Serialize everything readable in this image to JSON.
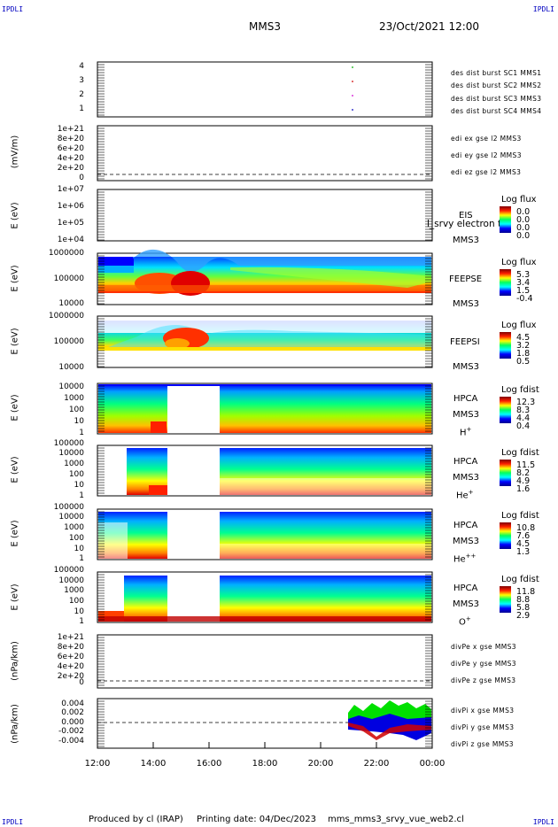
{
  "corners": {
    "tl": "IPDLI",
    "tr": "IPDLI",
    "bl": "IPDLI",
    "br": "IPDLI"
  },
  "header": {
    "spacecraft": "MMS3",
    "datetime": "23/Oct/2021 12:00"
  },
  "footer": {
    "produced": "Produced by cl (IRAP)",
    "printing": "Printing date: 04/Dec/2023",
    "file": "mms_mms3_srvy_vue_web2.cl"
  },
  "x_ticks": [
    "12:00",
    "14:00",
    "16:00",
    "18:00",
    "20:00",
    "22:00",
    "00:00"
  ],
  "panels": {
    "burst": {
      "y_ticks": [
        "4",
        "3",
        "2",
        "1"
      ],
      "legend": [
        {
          "text": "des dist burst SC1 MMS1",
          "color": "#0000c0"
        },
        {
          "text": "des dist burst SC2 MMS2",
          "color": "#d000d0"
        },
        {
          "text": "des dist burst SC3 MMS3",
          "color": "#d00000"
        },
        {
          "text": "des dist burst SC4 MMS4",
          "color": "#00b000"
        }
      ]
    },
    "edi": {
      "ylabel": "(mV/m)",
      "y_ticks": [
        "1e+21",
        "8e+20",
        "6e+20",
        "4e+20",
        "2e+20",
        "0"
      ],
      "legend": [
        {
          "text": "edi ex gse l2 MMS3",
          "color": "#d00000"
        },
        {
          "text": "edi ey gse l2 MMS3",
          "color": "#00b000"
        },
        {
          "text": "edi ez gse l2 MMS3",
          "color": "#0000c0"
        }
      ]
    },
    "eis": {
      "ylabel": "E (eV)",
      "y_ticks": [
        "1e+07",
        "1e+06",
        "1e+05",
        "1e+04"
      ],
      "inst": "EIS",
      "sc": "MMS3",
      "overlay": "l_srvy electron to",
      "cb_title": "Log flux",
      "cb_values": [
        "0.0",
        "0.0",
        "0.0",
        "0.0"
      ]
    },
    "feepse": {
      "ylabel": "E (eV)",
      "y_ticks": [
        "1000000",
        "100000",
        "10000"
      ],
      "inst": "FEEPSE",
      "sc": "MMS3",
      "cb_title": "Log flux",
      "cb_values": [
        "5.3",
        "3.4",
        "1.5",
        "-0.4"
      ]
    },
    "feepsi": {
      "ylabel": "E (eV)",
      "y_ticks": [
        "1000000",
        "100000",
        "10000"
      ],
      "inst": "FEEPSI",
      "sc": "MMS3",
      "cb_title": "Log flux",
      "cb_values": [
        "4.5",
        "3.2",
        "1.8",
        "0.5"
      ]
    },
    "hpca_h": {
      "ylabel": "E (eV)",
      "y_ticks": [
        "10000",
        "1000",
        "100",
        "10",
        "1"
      ],
      "inst": "HPCA",
      "sc": "MMS3",
      "species": "H",
      "charge": "+",
      "cb_title": "Log fdist",
      "cb_values": [
        "12.3",
        "8.3",
        "4.4",
        "0.4"
      ]
    },
    "hpca_he": {
      "ylabel": "E (eV)",
      "y_ticks": [
        "100000",
        "10000",
        "1000",
        "100",
        "10",
        "1"
      ],
      "inst": "HPCA",
      "sc": "MMS3",
      "species": "He",
      "charge": "+",
      "cb_title": "Log fdist",
      "cb_values": [
        "11.5",
        "8.2",
        "4.9",
        "1.6"
      ]
    },
    "hpca_hepp": {
      "ylabel": "E (eV)",
      "y_ticks": [
        "100000",
        "10000",
        "1000",
        "100",
        "10",
        "1"
      ],
      "inst": "HPCA",
      "sc": "MMS3",
      "species": "He",
      "charge": "++",
      "cb_title": "Log fdist",
      "cb_values": [
        "10.8",
        "7.6",
        "4.5",
        "1.3"
      ]
    },
    "hpca_o": {
      "ylabel": "E (eV)",
      "y_ticks": [
        "100000",
        "10000",
        "1000",
        "100",
        "10",
        "1"
      ],
      "inst": "HPCA",
      "sc": "MMS3",
      "species": "O",
      "charge": "+",
      "cb_title": "Log fdist",
      "cb_values": [
        "11.8",
        "8.8",
        "5.8",
        "2.9"
      ]
    },
    "divpe": {
      "ylabel": "(nPa/km)",
      "y_ticks": [
        "1e+21",
        "8e+20",
        "6e+20",
        "4e+20",
        "2e+20",
        "0"
      ],
      "legend": [
        {
          "text": "divPe x gse MMS3",
          "color": "#d00000"
        },
        {
          "text": "divPe y gse MMS3",
          "color": "#00b000"
        },
        {
          "text": "divPe z gse MMS3",
          "color": "#0000c0"
        }
      ]
    },
    "divpi": {
      "ylabel": "(nPa/km)",
      "y_ticks": [
        "0.004",
        "0.002",
        "0.000",
        "-0.002",
        "-0.004"
      ],
      "legend": [
        {
          "text": "divPi x gse MMS3",
          "color": "#d00000"
        },
        {
          "text": "divPi y gse MMS3",
          "color": "#00b000"
        },
        {
          "text": "divPi z gse MMS3",
          "color": "#0000c0"
        }
      ]
    }
  },
  "chart_data": {
    "type": "heatmap",
    "x_range": [
      "12:00",
      "00:00"
    ],
    "x_ticks": [
      "12:00",
      "14:00",
      "16:00",
      "18:00",
      "20:00",
      "22:00",
      "00:00"
    ],
    "data_gap_hpca": [
      "14:30",
      "16:25"
    ],
    "burst_intervals": [
      {
        "sc": "MMS1",
        "time": "21:10"
      },
      {
        "sc": "MMS2",
        "time": "21:10"
      },
      {
        "sc": "MMS3",
        "time": "21:10"
      },
      {
        "sc": "MMS4",
        "time": "21:10"
      }
    ],
    "divpi_range": [
      -0.004,
      0.004
    ],
    "divpi_active_interval": [
      "21:00",
      "00:00"
    ]
  }
}
